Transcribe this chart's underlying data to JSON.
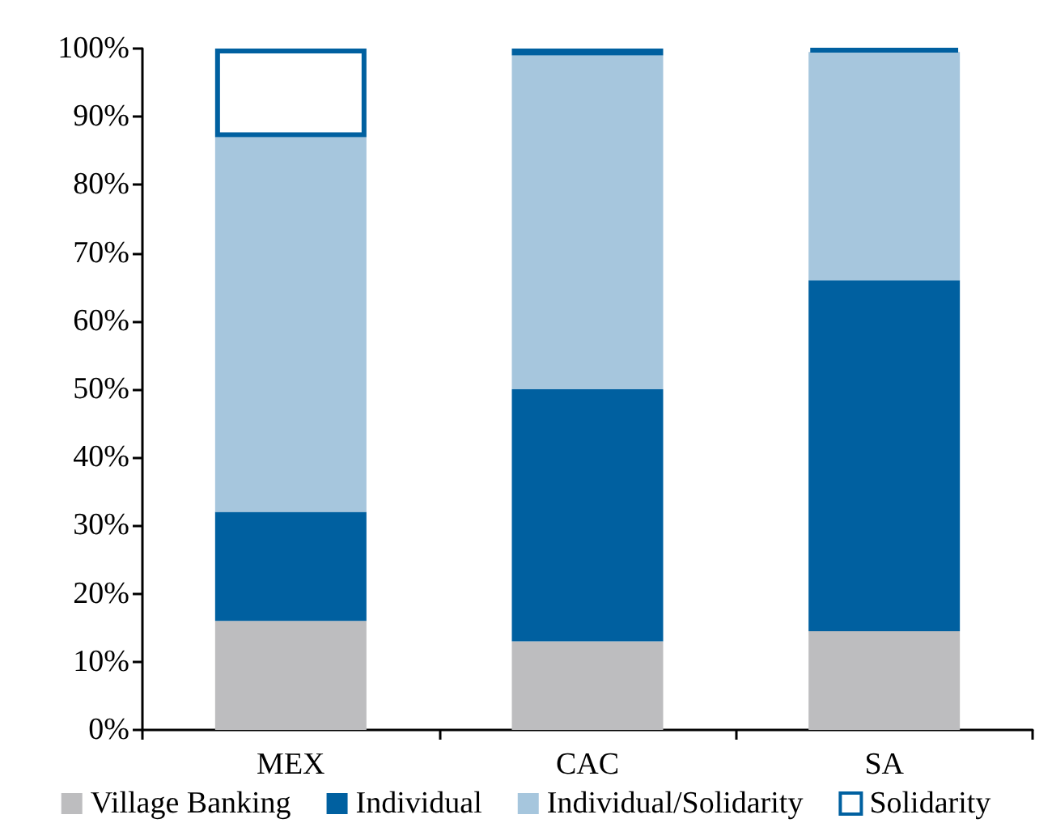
{
  "chart_data": {
    "type": "bar",
    "stacked": true,
    "categories": [
      "MEX",
      "CAC",
      "SA"
    ],
    "series": [
      {
        "name": "Village Banking",
        "color": "#bdbdbf",
        "values": [
          16,
          13,
          14.5
        ]
      },
      {
        "name": "Individual",
        "color": "#0060a0",
        "values": [
          16,
          37,
          51.5
        ]
      },
      {
        "name": "Individual/Solidarity",
        "color": "#a6c6dd",
        "values": [
          55,
          49,
          33.5
        ]
      },
      {
        "name": "Solidarity",
        "color": "#0060a0",
        "values": [
          13,
          1,
          0.5
        ]
      }
    ],
    "ylim": [
      0,
      100
    ],
    "yticks": [
      {
        "value": 0,
        "label": "0%"
      },
      {
        "value": 10,
        "label": "10%"
      },
      {
        "value": 20,
        "label": "20%"
      },
      {
        "value": 30,
        "label": "30%"
      },
      {
        "value": 40,
        "label": "40%"
      },
      {
        "value": 50,
        "label": "50%"
      },
      {
        "value": 60,
        "label": "60%"
      },
      {
        "value": 70,
        "label": "70%"
      },
      {
        "value": 80,
        "label": "80%"
      },
      {
        "value": 90,
        "label": "90%"
      },
      {
        "value": 100,
        "label": "100%"
      }
    ],
    "grid": false,
    "legend": "bottom"
  }
}
